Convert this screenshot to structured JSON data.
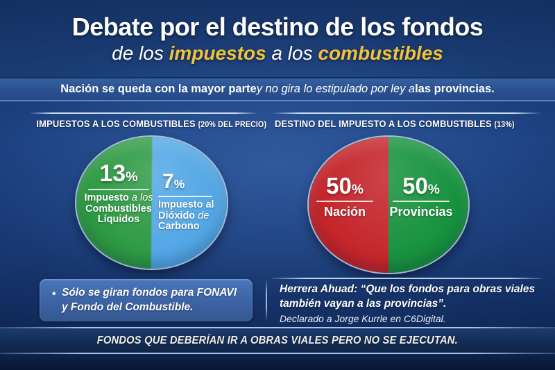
{
  "colors": {
    "accent_yellow": "#f2c23a",
    "background_navy": "#16356e",
    "pie1_green": "#2d9a43",
    "pie1_blue": "#52a7e5",
    "pie2_red": "#c4262b",
    "pie2_green": "#17923e",
    "rule_light_blue": "#cde4fc"
  },
  "title": {
    "line1": "Debate por el destino de los fondos",
    "line2": {
      "seg1": "de los ",
      "seg2": "impuestos",
      "seg3": " a los ",
      "seg4": "combustibles"
    }
  },
  "subtitle": {
    "seg1": "Nación se queda con la mayor parte",
    "seg2": " y no gira lo estipulado por ley a ",
    "seg3": "las provincias."
  },
  "chart_data": [
    {
      "type": "pie",
      "title": "IMPUESTOS A LOS COMBUSTIBLES",
      "title_note": "(20% DEL PRECIO)",
      "legend_position": "inside slices",
      "drawn_as": "two near-equal halves, green left / blue right, labels inside",
      "slices": [
        {
          "label": "Impuesto a los Combustibles Líquidos",
          "value_pct": 13,
          "pct_text": "13",
          "sign": "%",
          "color": "#2d9a43",
          "label_parts": {
            "l1a": "Impuesto",
            "l1b": " a los",
            "l2": "Combustibles",
            "l3": "Líquidos"
          }
        },
        {
          "label": "Impuesto al Dióxido de Carbono",
          "value_pct": 7,
          "pct_text": "7",
          "sign": "%",
          "color": "#52a7e5",
          "label_parts": {
            "l1": "Impuesto al",
            "l2a": "Dióxido",
            "l2b": " de",
            "l3": "Carbono"
          }
        }
      ]
    },
    {
      "type": "pie",
      "title": "DESTINO DEL IMPUESTO A LOS COMBUSTIBLES",
      "title_note": "(13%)",
      "legend_position": "inside slices",
      "drawn_as": "two equal halves, red left / green right, labels inside",
      "slices": [
        {
          "label": "Nación",
          "value_pct": 50,
          "pct_text": "50",
          "sign": "%",
          "color": "#c4262b"
        },
        {
          "label": "Provincias",
          "value_pct": 50,
          "pct_text": "50",
          "sign": "%",
          "color": "#17923e"
        }
      ]
    }
  ],
  "left_note": {
    "bullet": "•",
    "line1": "Sólo se giran fondos para FONAVI",
    "line2": "y Fondo del Combustible."
  },
  "right_quote": {
    "line1": "Herrera Ahuad: “Que los fondos para obras viales",
    "line2": "también vayan a las provincias”.",
    "line3": "Declarado a Jorge Kurrle en C6Digital."
  },
  "footer": {
    "text": "FONDOS QUE DEBERÍAN IR A OBRAS VIALES PERO NO SE EJECUTAN."
  }
}
